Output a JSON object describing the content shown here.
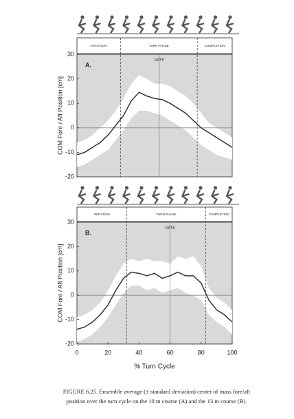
{
  "chart_data": [
    {
      "type": "line",
      "panel_label": "A.",
      "ylabel": "COM Fore / Aft Position [cm]",
      "phase_labels": [
        "INITIATION",
        "TURN PHASE",
        "COMPLETION"
      ],
      "phase_boundaries": [
        28,
        77.5
      ],
      "gate_label": "GATE",
      "gate": 53,
      "x": [
        0,
        5,
        10,
        15,
        20,
        25,
        30,
        35,
        40,
        45,
        50,
        55,
        60,
        65,
        70,
        75,
        80,
        85,
        90,
        95,
        100
      ],
      "series": [
        {
          "color": "#333333",
          "values": [
            -11,
            -10,
            -8,
            -6,
            -3,
            1,
            5,
            11,
            14.5,
            13,
            12,
            11.5,
            10,
            8,
            6,
            3,
            0,
            -2,
            -4,
            -6,
            -8
          ]
        },
        {
          "color": "#ffffff",
          "values": [
            -6,
            -5,
            -3,
            0,
            3,
            7,
            12,
            18,
            21.5,
            20,
            18,
            18,
            17,
            15,
            13,
            10,
            6,
            2,
            0,
            -2,
            -4
          ]
        },
        {
          "color": "#ffffff",
          "values": [
            -16,
            -15,
            -13,
            -11,
            -9,
            -5,
            -1,
            4,
            7,
            7,
            6,
            5,
            3,
            1,
            -1,
            -4,
            -7,
            -9,
            -11,
            -12,
            -13
          ]
        }
      ],
      "xlim": [
        0,
        100
      ],
      "ylim": [
        -20,
        30
      ],
      "yticks": [
        30,
        20,
        10,
        0,
        -10,
        -20
      ]
    },
    {
      "type": "line",
      "panel_label": "B.",
      "ylabel": "COM Fore / Aft Position [cm]",
      "xlabel": "% Turn Cycle",
      "phase_labels": [
        "INITIATION",
        "TURN PHASE",
        "COMPLETION"
      ],
      "phase_boundaries": [
        32,
        83
      ],
      "gate_label": "GATE",
      "gate": 60,
      "x": [
        0,
        5,
        10,
        15,
        20,
        25,
        30,
        35,
        40,
        45,
        50,
        55,
        60,
        65,
        70,
        75,
        80,
        85,
        90,
        95,
        100
      ],
      "series": [
        {
          "color": "#333333",
          "values": [
            -14,
            -13,
            -11,
            -8,
            -4,
            2,
            7,
            9.5,
            9,
            8,
            9,
            7,
            8,
            9.5,
            8,
            8,
            5,
            -2,
            -6,
            -8,
            -11
          ]
        },
        {
          "color": "#ffffff",
          "values": [
            -9,
            -8,
            -6,
            -3,
            2,
            8,
            13,
            15,
            14,
            15,
            14,
            14,
            13,
            16,
            15,
            16,
            12,
            3,
            -1,
            -3,
            -6
          ]
        },
        {
          "color": "#ffffff",
          "values": [
            -19,
            -18,
            -16,
            -13,
            -9,
            -4,
            1,
            4,
            4,
            2,
            3,
            1,
            2,
            3,
            1,
            0,
            -2,
            -8,
            -11,
            -13,
            -16
          ]
        }
      ],
      "xlim": [
        0,
        100
      ],
      "xticks": [
        0,
        20,
        40,
        60,
        80,
        100
      ],
      "ylim": [
        -20,
        30
      ],
      "yticks": [
        30,
        20,
        10,
        0,
        -10,
        -20
      ]
    }
  ],
  "caption": [
    "FIGURE 6.25.  Ensemble average (± standard deviation) center of mass fore/aft",
    "position over the turn cycle on the 10 m course (A) and the 13 m course (B)."
  ]
}
